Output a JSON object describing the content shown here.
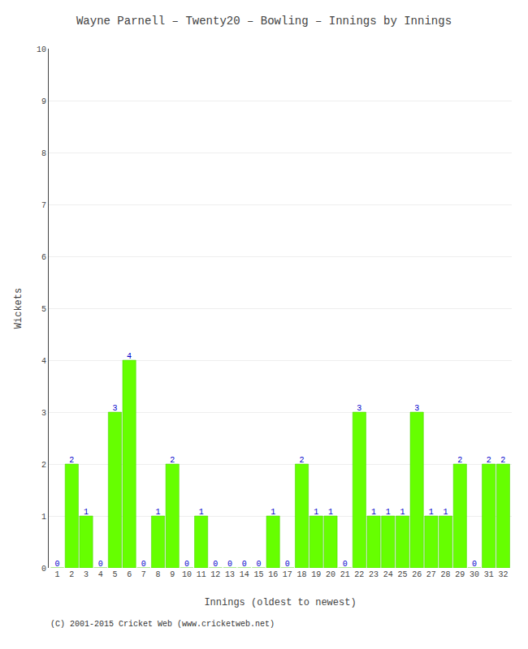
{
  "chart_data": {
    "type": "bar",
    "title": "Wayne Parnell – Twenty20 – Bowling – Innings by Innings",
    "xlabel": "Innings (oldest to newest)",
    "ylabel": "Wickets",
    "annotations": [
      "(C) 2001-2015 Cricket Web (www.cricketweb.net)"
    ],
    "categories": [
      1,
      2,
      3,
      4,
      5,
      6,
      7,
      8,
      9,
      10,
      11,
      12,
      13,
      14,
      15,
      16,
      17,
      18,
      19,
      20,
      21,
      22,
      23,
      24,
      25,
      26,
      27,
      28,
      29,
      30,
      31,
      32
    ],
    "values": [
      0,
      2,
      1,
      0,
      3,
      4,
      0,
      1,
      2,
      0,
      1,
      0,
      0,
      0,
      0,
      1,
      0,
      2,
      1,
      1,
      0,
      3,
      1,
      1,
      1,
      3,
      1,
      1,
      2,
      0,
      2,
      2
    ],
    "color": "#66ff00",
    "ylim": [
      0,
      10
    ],
    "yticks": [
      0,
      1,
      2,
      3,
      4,
      5,
      6,
      7,
      8,
      9,
      10
    ],
    "grid": true,
    "data_labels": true
  }
}
